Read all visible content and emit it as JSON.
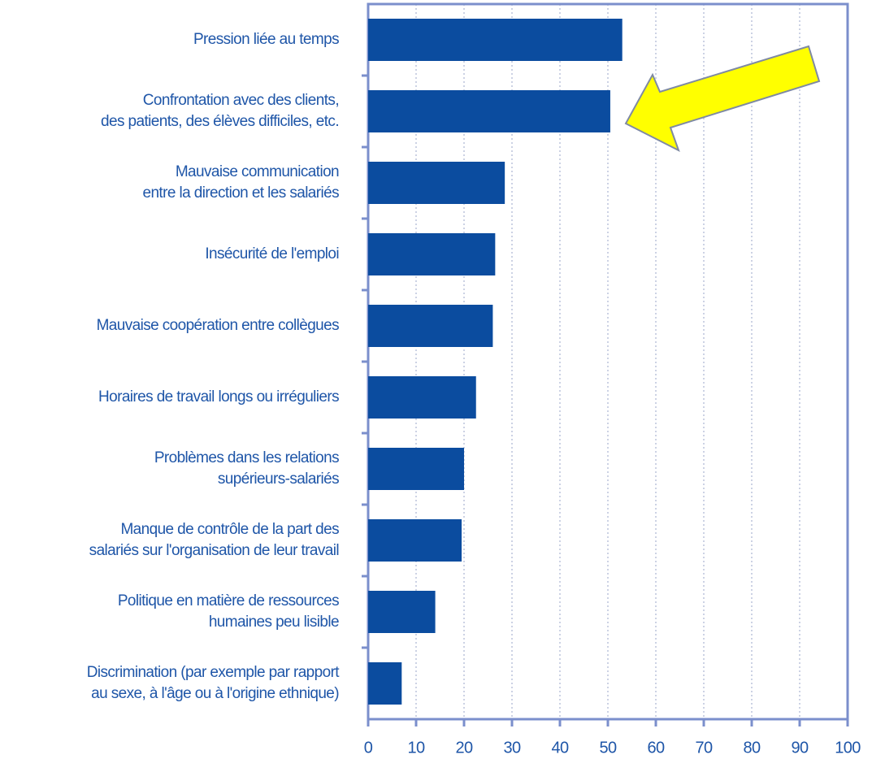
{
  "chart_data": {
    "type": "bar",
    "orientation": "horizontal",
    "categories": [
      "Pression liée au temps",
      "Confrontation avec des clients,\ndes patients, des élèves difficiles, etc.",
      "Mauvaise communication\nentre la direction et les salariés",
      "Insécurité de l'emploi",
      "Mauvaise coopération entre collègues",
      "Horaires de travail longs ou irréguliers",
      "Problèmes dans les relations\nsupérieurs-salariés",
      "Manque de contrôle de la part des\nsalariés sur l'organisation de leur travail",
      "Politique en matière de ressources\nhumaines peu lisible",
      "Discrimination (par exemple par rapport\nau sexe, à l'âge ou à l'origine ethnique)"
    ],
    "values": [
      53,
      50.5,
      28.5,
      26.5,
      26,
      22.5,
      20,
      19.5,
      14,
      7
    ],
    "color": "#0b4c9f",
    "xlim": [
      0,
      100
    ],
    "xticks": [
      0,
      10,
      20,
      30,
      40,
      50,
      60,
      70,
      80,
      90,
      100
    ],
    "grid": true
  }
}
